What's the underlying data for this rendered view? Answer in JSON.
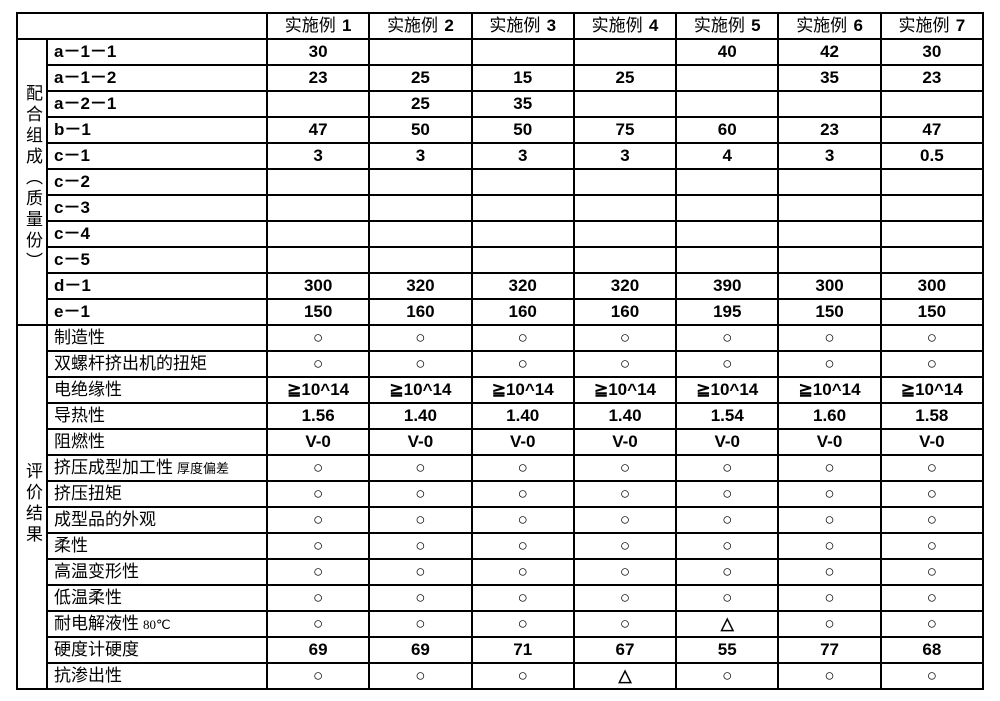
{
  "columns": [
    "实施例 1",
    "实施例 2",
    "实施例 3",
    "实施例 4",
    "实施例 5",
    "实施例 6",
    "实施例 7"
  ],
  "section1": {
    "header": "配合组成（质量份）",
    "rows": [
      {
        "label": "a－1－1",
        "ascii": true,
        "values": [
          "30",
          "",
          "",
          "",
          "40",
          "42",
          "30"
        ]
      },
      {
        "label": "a－1－2",
        "ascii": true,
        "values": [
          "23",
          "25",
          "15",
          "25",
          "",
          "35",
          "23"
        ]
      },
      {
        "label": "a－2－1",
        "ascii": true,
        "values": [
          "",
          "25",
          "35",
          "",
          "",
          "",
          ""
        ]
      },
      {
        "label": "b－1",
        "ascii": true,
        "values": [
          "47",
          "50",
          "50",
          "75",
          "60",
          "23",
          "47"
        ]
      },
      {
        "label": "c－1",
        "ascii": true,
        "values": [
          "3",
          "3",
          "3",
          "3",
          "4",
          "3",
          "0.5"
        ]
      },
      {
        "label": "c－2",
        "ascii": true,
        "values": [
          "",
          "",
          "",
          "",
          "",
          "",
          ""
        ]
      },
      {
        "label": "c－3",
        "ascii": true,
        "values": [
          "",
          "",
          "",
          "",
          "",
          "",
          ""
        ]
      },
      {
        "label": "c－4",
        "ascii": true,
        "values": [
          "",
          "",
          "",
          "",
          "",
          "",
          ""
        ]
      },
      {
        "label": "c－5",
        "ascii": true,
        "values": [
          "",
          "",
          "",
          "",
          "",
          "",
          ""
        ]
      },
      {
        "label": "d－1",
        "ascii": true,
        "values": [
          "300",
          "320",
          "320",
          "320",
          "390",
          "300",
          "300"
        ]
      },
      {
        "label": "e－1",
        "ascii": true,
        "values": [
          "150",
          "160",
          "160",
          "160",
          "195",
          "150",
          "150"
        ]
      }
    ]
  },
  "section2": {
    "header": "评价结果",
    "rows": [
      {
        "label": "制造性",
        "values": [
          "○",
          "○",
          "○",
          "○",
          "○",
          "○",
          "○"
        ]
      },
      {
        "label": "双螺杆挤出机的扭矩",
        "values": [
          "○",
          "○",
          "○",
          "○",
          "○",
          "○",
          "○"
        ]
      },
      {
        "label": "电绝缘性",
        "values": [
          "≧10^14",
          "≧10^14",
          "≧10^14",
          "≧10^14",
          "≧10^14",
          "≧10^14",
          "≧10^14"
        ]
      },
      {
        "label": "导热性",
        "values": [
          "1.56",
          "1.40",
          "1.40",
          "1.40",
          "1.54",
          "1.60",
          "1.58"
        ]
      },
      {
        "label": "阻燃性",
        "values": [
          "V-0",
          "V-0",
          "V-0",
          "V-0",
          "V-0",
          "V-0",
          "V-0"
        ]
      },
      {
        "label": "挤压成型加工性",
        "suffix": "厚度偏差",
        "values": [
          "○",
          "○",
          "○",
          "○",
          "○",
          "○",
          "○"
        ]
      },
      {
        "label": "挤压扭矩",
        "values": [
          "○",
          "○",
          "○",
          "○",
          "○",
          "○",
          "○"
        ]
      },
      {
        "label": "成型品的外观",
        "values": [
          "○",
          "○",
          "○",
          "○",
          "○",
          "○",
          "○"
        ]
      },
      {
        "label": "柔性",
        "values": [
          "○",
          "○",
          "○",
          "○",
          "○",
          "○",
          "○"
        ]
      },
      {
        "label": "高温变形性",
        "values": [
          "○",
          "○",
          "○",
          "○",
          "○",
          "○",
          "○"
        ]
      },
      {
        "label": "低温柔性",
        "values": [
          "○",
          "○",
          "○",
          "○",
          "○",
          "○",
          "○"
        ]
      },
      {
        "label": "耐电解液性",
        "suffix": "80℃",
        "values": [
          "○",
          "○",
          "○",
          "○",
          "△",
          "○",
          "○"
        ]
      },
      {
        "label": "硬度计硬度",
        "values": [
          "69",
          "69",
          "71",
          "67",
          "55",
          "77",
          "68"
        ]
      },
      {
        "label": "抗渗出性",
        "values": [
          "○",
          "○",
          "○",
          "△",
          "○",
          "○",
          "○"
        ]
      }
    ]
  }
}
